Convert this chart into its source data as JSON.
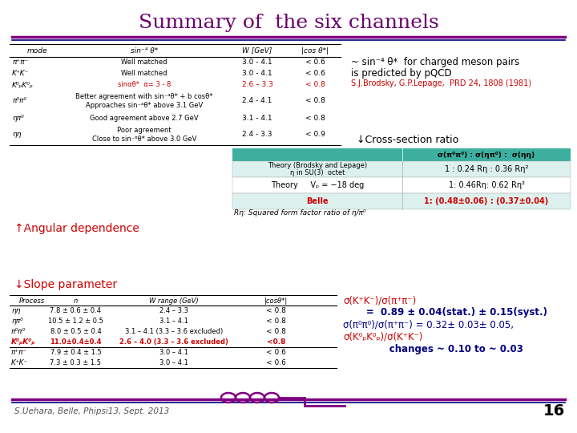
{
  "title": "Summary of  the six channels",
  "title_color": "#6B006B",
  "title_fontsize": 18,
  "bg_color": "#FFFFFF",
  "top_table_rows": [
    [
      "π⁺π⁻",
      "Well matched",
      "3.0 - 4.1",
      "< 0.6"
    ],
    [
      "K⁺K⁻",
      "Well matched",
      "3.0 - 4.1",
      "< 0.6"
    ],
    [
      "K⁰ₚK⁰ₚ",
      "sinαθ*  α= 3 - 8",
      "2.6 – 3.3",
      "< 0.8"
    ],
    [
      "π⁰π⁰",
      "Better agreement with sin⁻⁴θ* + b cosθ*\nApproaches sin⁻⁴θ* above 3.1 GeV",
      "2.4 - 4.1",
      "< 0.8"
    ],
    [
      "ηπ⁰",
      "Good agreement above 2.7 GeV",
      "3.1 - 4.1",
      "< 0.8"
    ],
    [
      "ηη",
      "Poor agreement\nClose to sin⁻⁶θ* above 3.0 GeV",
      "2.4 - 3.3",
      "< 0.9"
    ]
  ],
  "prediction_text_line1": "~ sin⁻⁴ θ*  for charged meson pairs",
  "prediction_text_line2": "is predicted by pQCD",
  "prediction_ref": "S.J.Brodsky, G.P.Lepage,  PRD 24, 1808 (1981)",
  "prediction_ref_color": "#CC0000",
  "cross_section_label": "↓Cross-section ratio",
  "ratio_table_col_header": "σ(π⁰π⁰) : σ(ηπ⁰) :  σ(ηη)",
  "ratio_table_bg": "#3DAFA0",
  "ratio_table_rows": [
    [
      "Theory (Brodsky and Lepage)\nη in SU(3)  octet",
      "1 : 0.24 Rη : 0.36 Rη²"
    ],
    [
      "Theory     Vₚ = −18 deg",
      "1: 0.46Rη: 0.62 Rη²"
    ],
    [
      "Belle",
      "1: (0.48±0.06) : (0.37±0.04)"
    ]
  ],
  "angular_dep_label": "↑Angular dependence",
  "angular_dep_color": "#CC0000",
  "slope_param_label": "↓Slope parameter",
  "slope_param_color": "#CC0000",
  "bottom_table_rows": [
    [
      "ηη",
      "7.8 ± 0.6 ± 0.4",
      "2.4 – 3.3",
      "< 0.8"
    ],
    [
      "ηπ⁰",
      "10.5 ± 1.2 ± 0.5",
      "3.1 – 4.1",
      "< 0.8"
    ],
    [
      "π⁰π⁰",
      "8.0 ± 0.5 ± 0.4",
      "3.1 – 4.1 (3.3 – 3.6 excluded)",
      "< 0.8"
    ],
    [
      "K⁰ₚK⁰ₚ",
      "11.0±0.4±0.4",
      "2.6 – 4.0 (3.3 – 3.6 excluded)",
      "<0.8"
    ],
    [
      "π⁺π⁻",
      "7.9 ± 0.4 ± 1.5",
      "3.0 – 4.1",
      "< 0.6"
    ],
    [
      "K⁺K⁻",
      "7.3 ± 0.3 ± 1.5",
      "3.0 – 4.1",
      "< 0.6"
    ]
  ],
  "ratio_text_lines": [
    [
      "σ(K⁺K⁻)/σ(π⁺π⁻)",
      "#CC0000",
      false
    ],
    [
      "       =  0.89 ± 0.04(stat.) ± 0.15(syst.)",
      "#000080",
      true
    ],
    [
      "σ(π⁰π⁰)/σ(π⁺π⁻) = 0.32± 0.03± 0.05,",
      "#000080",
      false
    ],
    [
      "σ(K⁰ₚK⁰ₚ)/σ(K⁺K⁻)",
      "#CC0000",
      false
    ],
    [
      "              changes ~ 0.10 to ~ 0.03",
      "#000080",
      true
    ]
  ],
  "footer_text": "S.Uehara, Belle, Phipsi13, Sept. 2013",
  "footer_page": "16",
  "footer_color": "#555555",
  "purple": "#800080",
  "navy": "#000080"
}
